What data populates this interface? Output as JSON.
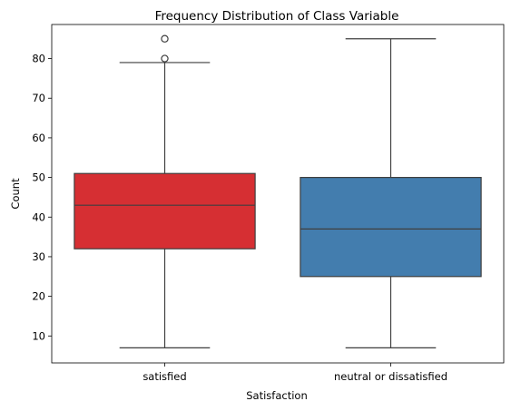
{
  "chart_data": {
    "type": "box",
    "title": "Frequency Distribution of Class Variable",
    "xlabel": "Satisfaction",
    "ylabel": "Count",
    "categories": [
      "satisfied",
      "neutral or dissatisfied"
    ],
    "ylim": [
      3.2,
      88.6
    ],
    "yticks": [
      10,
      20,
      30,
      40,
      50,
      60,
      70,
      80
    ],
    "grid": false,
    "boxes": [
      {
        "category": "satisfied",
        "whisker_low": 7,
        "q1": 32,
        "median": 43,
        "q3": 51,
        "whisker_high": 79,
        "outliers": [
          80,
          85
        ],
        "color": "#d62f33"
      },
      {
        "category": "neutral or dissatisfied",
        "whisker_low": 7,
        "q1": 25,
        "median": 37,
        "q3": 50,
        "whisker_high": 85,
        "outliers": [],
        "color": "#437dae"
      }
    ]
  }
}
